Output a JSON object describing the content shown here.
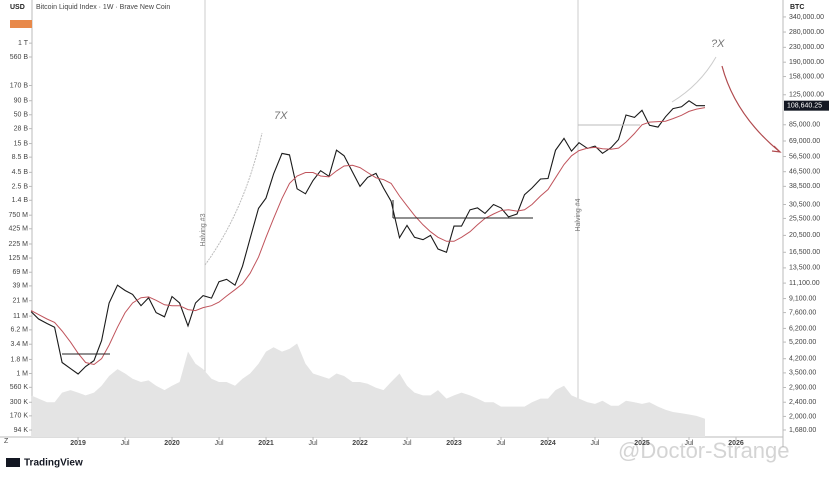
{
  "chart_data": {
    "type": "line",
    "title": "Bitcoin Liquid Index · 1W · Brave New Coin",
    "left_axis_label": "USD",
    "right_axis_label": "BTC",
    "brand": "TradingView",
    "watermark": "@Doctor-Strange",
    "annotations": [
      "7X",
      "?X",
      "Halving #3",
      "Halving #4"
    ],
    "x": [
      2018.5,
      2018.58,
      2018.67,
      2018.75,
      2018.83,
      2018.92,
      2019,
      2019.08,
      2019.17,
      2019.25,
      2019.33,
      2019.42,
      2019.5,
      2019.58,
      2019.67,
      2019.75,
      2019.83,
      2019.92,
      2020,
      2020.08,
      2020.17,
      2020.25,
      2020.33,
      2020.42,
      2020.5,
      2020.58,
      2020.67,
      2020.75,
      2020.83,
      2020.92,
      2021,
      2021.08,
      2021.17,
      2021.25,
      2021.33,
      2021.42,
      2021.5,
      2021.58,
      2021.67,
      2021.75,
      2021.83,
      2021.92,
      2022,
      2022.08,
      2022.17,
      2022.25,
      2022.33,
      2022.42,
      2022.5,
      2022.58,
      2022.67,
      2022.75,
      2022.83,
      2022.92,
      2023,
      2023.08,
      2023.17,
      2023.25,
      2023.33,
      2023.42,
      2023.5,
      2023.58,
      2023.67,
      2023.75,
      2023.83,
      2023.92,
      2024,
      2024.08,
      2024.17,
      2024.25,
      2024.33,
      2024.42,
      2024.5,
      2024.58,
      2024.67,
      2024.75,
      2024.83,
      2024.92,
      2025,
      2025.08,
      2025.17,
      2025.25,
      2025.33,
      2025.42,
      2025.5,
      2025.58,
      2025.67
    ],
    "series": [
      {
        "color": "#1a1a1a",
        "axis": "y2",
        "values": [
          7700,
          7000,
          6600,
          6300,
          4000,
          3700,
          3450,
          3800,
          4100,
          5300,
          8600,
          10800,
          10100,
          9600,
          8300,
          9200,
          7600,
          7200,
          9350,
          8600,
          6400,
          8600,
          9450,
          9150,
          11300,
          11650,
          10800,
          13800,
          19700,
          29000,
          33100,
          45200,
          58800,
          57700,
          37300,
          35000,
          41500,
          47100,
          43800,
          61300,
          57000,
          46300,
          38500,
          43200,
          45500,
          37700,
          31800,
          19900,
          23300,
          20000,
          19400,
          20500,
          17200,
          16500,
          23100,
          23100,
          28500,
          29200,
          27200,
          30500,
          29200,
          26000,
          27000,
          34600,
          37700,
          42300,
          42600,
          61200,
          71300,
          60600,
          67500,
          62700,
          64600,
          58900,
          63300,
          70200,
          96400,
          93400,
          102400,
          84400,
          82500,
          94200,
          104600,
          107100,
          115700,
          108600,
          108640.25
        ],
        "value_labels": [
          null,
          null,
          null,
          null,
          null,
          null,
          null,
          null,
          null,
          null,
          null,
          null,
          null,
          null,
          null,
          null,
          null,
          null,
          null,
          null,
          null,
          null,
          null,
          null,
          null,
          null,
          null,
          null,
          null,
          null,
          null,
          null,
          null,
          null,
          null,
          null,
          null,
          null,
          null,
          null,
          null,
          null,
          null,
          null,
          null,
          null,
          null,
          null,
          null,
          null,
          null,
          null,
          null,
          null,
          null,
          null,
          null,
          null,
          null,
          null,
          null,
          null,
          null,
          null,
          null,
          null,
          null,
          null,
          null,
          null,
          null,
          null,
          null,
          null,
          null,
          null,
          null,
          null,
          null,
          null,
          null,
          null,
          null,
          null,
          null,
          null,
          "108,640.25"
        ]
      },
      {
        "color": "#c0545c",
        "axis": "y2",
        "values": [
          7800,
          7400,
          7000,
          6700,
          6000,
          5200,
          4500,
          4000,
          3900,
          4200,
          5000,
          6300,
          7600,
          8600,
          9200,
          9300,
          8900,
          8400,
          8300,
          8300,
          7900,
          7800,
          8100,
          8300,
          8700,
          9400,
          10200,
          11000,
          12600,
          15500,
          20000,
          25500,
          33000,
          40000,
          44000,
          46000,
          46000,
          44000,
          43500,
          47000,
          50000,
          50500,
          49000,
          46000,
          43000,
          42000,
          40000,
          34000,
          30000,
          26500,
          23500,
          21500,
          20000,
          19000,
          19000,
          20000,
          21500,
          23500,
          25500,
          27000,
          28200,
          28500,
          28000,
          28500,
          30500,
          34000,
          37000,
          43000,
          51000,
          57000,
          61000,
          63000,
          63500,
          62500,
          62000,
          63000,
          68000,
          76000,
          85000,
          88000,
          88500,
          89000,
          92000,
          96000,
          101000,
          104000,
          106000
        ]
      },
      {
        "color": "#e4e4e4",
        "axis": "y",
        "kind": "area",
        "values": [
          400000,
          350000,
          300000,
          300000,
          450000,
          500000,
          450000,
          400000,
          450000,
          600000,
          900000,
          1200000,
          1000000,
          800000,
          700000,
          750000,
          600000,
          500000,
          600000,
          700000,
          2500000,
          1500000,
          1200000,
          800000,
          700000,
          700000,
          600000,
          800000,
          1000000,
          1500000,
          2500000,
          3000000,
          2500000,
          2800000,
          3500000,
          1500000,
          1000000,
          900000,
          800000,
          1000000,
          900000,
          700000,
          700000,
          650000,
          550000,
          500000,
          700000,
          1000000,
          600000,
          450000,
          400000,
          400000,
          500000,
          350000,
          400000,
          450000,
          400000,
          350000,
          300000,
          300000,
          250000,
          250000,
          250000,
          250000,
          300000,
          350000,
          350000,
          500000,
          600000,
          400000,
          350000,
          300000,
          280000,
          320000,
          260000,
          260000,
          320000,
          300000,
          280000,
          300000,
          250000,
          220000,
          200000,
          190000,
          180000,
          170000,
          150000
        ]
      }
    ],
    "xlim": [
      2018.51,
      2026.5
    ],
    "xticks": [
      2019,
      {
        "value": 2019.5,
        "label": "Jul"
      },
      2020,
      {
        "value": 2020.5,
        "label": "Jul"
      },
      2021,
      {
        "value": 2021.5,
        "label": "Jul"
      },
      2022,
      {
        "value": 2022.5,
        "label": "Jul"
      },
      2023,
      {
        "value": 2023.5,
        "label": "Jul"
      },
      2024,
      {
        "value": 2024.5,
        "label": "Jul"
      },
      2025,
      {
        "value": 2025.5,
        "label": "Jul"
      },
      2026
    ],
    "log_scale": true,
    "ylim": [
      70200,
      4000000000000
    ],
    "yticks": [
      {
        "value": 1000000000000,
        "label": "1 T"
      },
      {
        "value": 560000000000,
        "label": "560 B"
      },
      {
        "value": 170000000000,
        "label": "170 B"
      },
      {
        "value": 90000000000,
        "label": "90 B"
      },
      {
        "value": 50000000000,
        "label": "50 B"
      },
      {
        "value": 28000000000,
        "label": "28 B"
      },
      {
        "value": 15000000000,
        "label": "15 B"
      },
      {
        "value": 8500000000,
        "label": "8.5 B"
      },
      {
        "value": 4500000000,
        "label": "4.5 B"
      },
      {
        "value": 2500000000,
        "label": "2.5 B"
      },
      {
        "value": 1400000000,
        "label": "1.4 B"
      },
      {
        "value": 750000000,
        "label": "750 M"
      },
      {
        "value": 425000000,
        "label": "425 M"
      },
      {
        "value": 225000000,
        "label": "225 M"
      },
      {
        "value": 125000000,
        "label": "125 M"
      },
      {
        "value": 69000000,
        "label": "69 M"
      },
      {
        "value": 39000000,
        "label": "39 M"
      },
      {
        "value": 21000000,
        "label": "21 M"
      },
      {
        "value": 11000000,
        "label": "11 M"
      },
      {
        "value": 6200000,
        "label": "6.2 M"
      },
      {
        "value": 3400000,
        "label": "3.4 M"
      },
      {
        "value": 1800000,
        "label": "1.8 M"
      },
      {
        "value": 1000000,
        "label": "1 M"
      },
      {
        "value": 560000,
        "label": "560 K"
      },
      {
        "value": 300000,
        "label": "300 K"
      },
      {
        "value": 170000,
        "label": "170 K"
      },
      {
        "value": 94000,
        "label": "94 K"
      }
    ],
    "y2lim": [
      1535,
      371700
    ],
    "y2ticks": [
      {
        "value": 340000,
        "label": "340,000.00"
      },
      {
        "value": 280000,
        "label": "280,000.00"
      },
      {
        "value": 230000,
        "label": "230,000.00"
      },
      {
        "value": 190000,
        "label": "190,000.00"
      },
      {
        "value": 158000,
        "label": "158,000.00"
      },
      {
        "value": 125000,
        "label": "125,000.00"
      },
      {
        "value": 85000,
        "label": "85,000.00"
      },
      {
        "value": 69000,
        "label": "69,000.00"
      },
      {
        "value": 56500,
        "label": "56,500.00"
      },
      {
        "value": 46500,
        "label": "46,500.00"
      },
      {
        "value": 38500,
        "label": "38,500.00"
      },
      {
        "value": 30500,
        "label": "30,500.00"
      },
      {
        "value": 25500,
        "label": "25,500.00"
      },
      {
        "value": 20500,
        "label": "20,500.00"
      },
      {
        "value": 16500,
        "label": "16,500.00"
      },
      {
        "value": 13500,
        "label": "13,500.00"
      },
      {
        "value": 11100,
        "label": "11,100.00"
      },
      {
        "value": 9100,
        "label": "9,100.00"
      },
      {
        "value": 7600,
        "label": "7,600.00"
      },
      {
        "value": 6200,
        "label": "6,200.00"
      },
      {
        "value": 5200,
        "label": "5,200.00"
      },
      {
        "value": 4200,
        "label": "4,200.00"
      },
      {
        "value": 3500,
        "label": "3,500.00"
      },
      {
        "value": 2900,
        "label": "2,900.00"
      },
      {
        "value": 2400,
        "label": "2,400.00"
      },
      {
        "value": 2000,
        "label": "2,000.00"
      },
      {
        "value": 1680,
        "label": "1,680.00"
      }
    ]
  }
}
